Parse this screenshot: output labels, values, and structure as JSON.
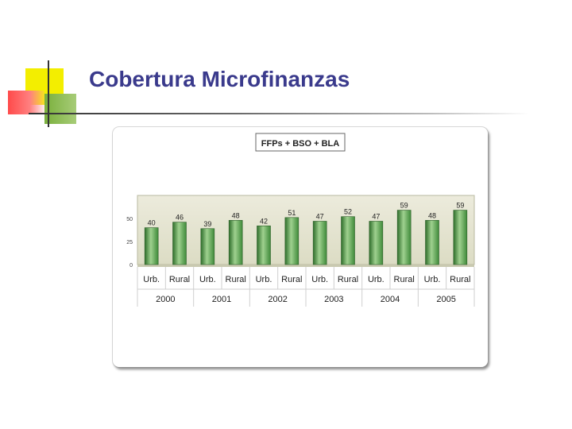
{
  "slide": {
    "title": "Cobertura Microfinanzas"
  },
  "chart_data": {
    "type": "bar",
    "title": "FFPs + BSO + BLA",
    "categories": [
      {
        "group": "2000",
        "label": "Urb."
      },
      {
        "group": "2000",
        "label": "Rural"
      },
      {
        "group": "2001",
        "label": "Urb."
      },
      {
        "group": "2001",
        "label": "Rural"
      },
      {
        "group": "2002",
        "label": "Urb."
      },
      {
        "group": "2002",
        "label": "Rural"
      },
      {
        "group": "2003",
        "label": "Urb."
      },
      {
        "group": "2003",
        "label": "Rural"
      },
      {
        "group": "2004",
        "label": "Urb."
      },
      {
        "group": "2004",
        "label": "Rural"
      },
      {
        "group": "2005",
        "label": "Urb."
      },
      {
        "group": "2005",
        "label": "Rural"
      }
    ],
    "groups": [
      "2000",
      "2001",
      "2002",
      "2003",
      "2004",
      "2005"
    ],
    "values": [
      40,
      46,
      39,
      48,
      42,
      51,
      47,
      52,
      47,
      59,
      48,
      59
    ],
    "ylim": [
      0,
      75
    ],
    "yticks": [
      0,
      25,
      50
    ],
    "grid": false,
    "colors": {
      "bar": "#4f9a48",
      "plot_bg": "#e5e5d2"
    }
  }
}
